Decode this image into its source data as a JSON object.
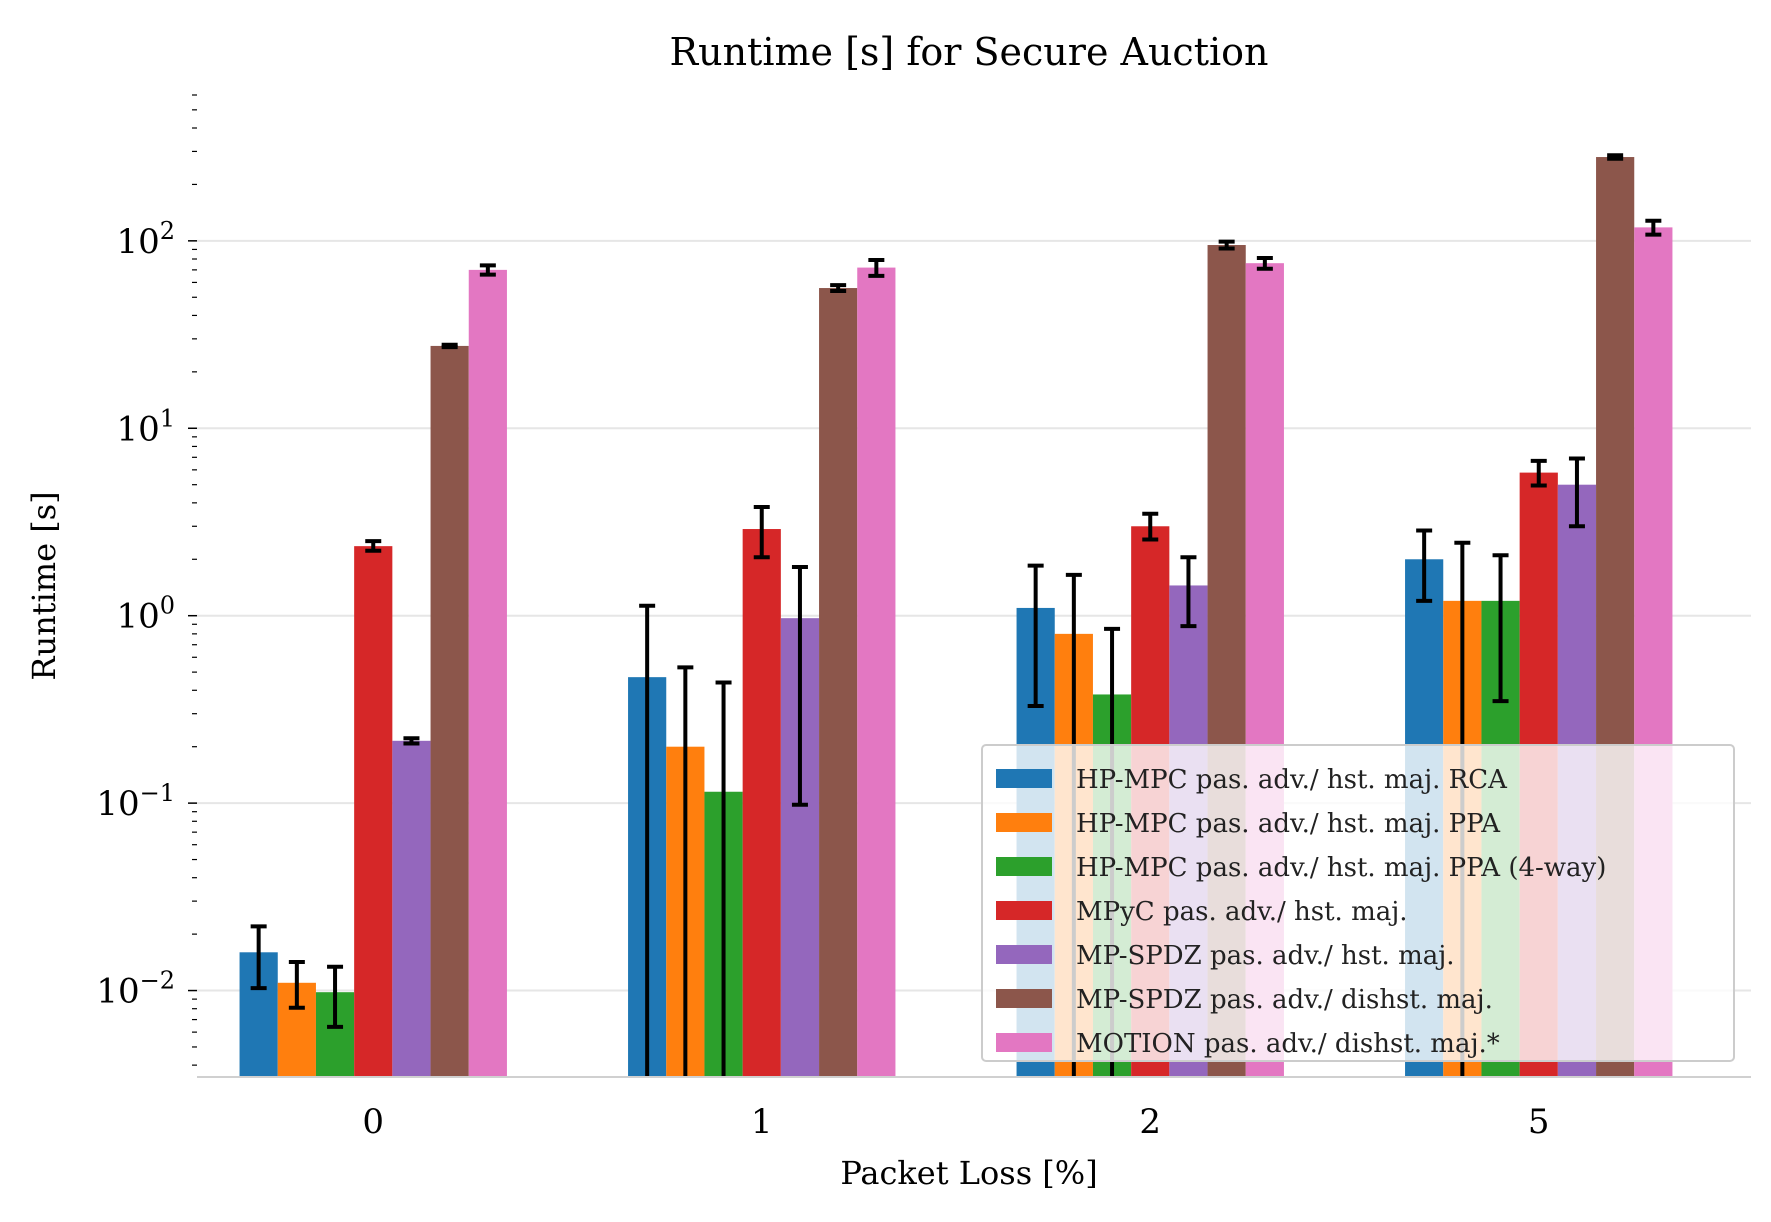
{
  "chart_data": {
    "type": "bar",
    "title": "Runtime [s] for Secure Auction",
    "xlabel": "Packet Loss [%]",
    "ylabel": "Runtime [s]",
    "yscale": "log",
    "ylim": [
      0.0035,
      600
    ],
    "categories": [
      "0",
      "1",
      "2",
      "5"
    ],
    "ytick_labels": [
      {
        "value": 0.01,
        "base": "10",
        "exp": "−2"
      },
      {
        "value": 0.1,
        "base": "10",
        "exp": "−1"
      },
      {
        "value": 1,
        "base": "10",
        "exp": "0"
      },
      {
        "value": 10,
        "base": "10",
        "exp": "1"
      },
      {
        "value": 100,
        "base": "10",
        "exp": "2"
      }
    ],
    "grid": "horizontal",
    "legend_position": "lower-right",
    "series": [
      {
        "name": "HP-MPC pas. adv./ hst. maj. RCA",
        "color": "#1f77b4",
        "values": [
          0.016,
          0.47,
          1.1,
          2.0
        ],
        "err_low": [
          0.0103,
          0.0035,
          0.33,
          1.2
        ],
        "err_high": [
          0.022,
          1.13,
          1.85,
          2.85
        ]
      },
      {
        "name": "HP-MPC pas. adv./ hst. maj. PPA",
        "color": "#ff7f0e",
        "values": [
          0.011,
          0.2,
          0.8,
          1.2
        ],
        "err_low": [
          0.0081,
          0.0035,
          0.0035,
          0.0035
        ],
        "err_high": [
          0.0142,
          0.53,
          1.65,
          2.45
        ]
      },
      {
        "name": "HP-MPC pas. adv./ hst. maj. PPA (4-way)",
        "color": "#2ca02c",
        "values": [
          0.0098,
          0.115,
          0.38,
          1.2
        ],
        "err_low": [
          0.0064,
          0.0035,
          0.0035,
          0.35
        ],
        "err_high": [
          0.0134,
          0.44,
          0.85,
          2.1
        ]
      },
      {
        "name": "MPyC pas. adv./ hst. maj.",
        "color": "#d62728",
        "values": [
          2.35,
          2.9,
          3.0,
          5.8
        ],
        "err_low": [
          2.22,
          2.05,
          2.55,
          4.95
        ],
        "err_high": [
          2.5,
          3.8,
          3.5,
          6.7
        ]
      },
      {
        "name": "MP-SPDZ pas. adv./ hst. maj.",
        "color": "#9467bd",
        "values": [
          0.215,
          0.97,
          1.45,
          5.0
        ],
        "err_low": [
          0.208,
          0.098,
          0.88,
          3.0
        ],
        "err_high": [
          0.222,
          1.82,
          2.05,
          6.9
        ]
      },
      {
        "name": "MP-SPDZ pas. adv./ dishst. maj.",
        "color": "#8c564b",
        "values": [
          27.5,
          56,
          95,
          280
        ],
        "err_low": [
          27.1,
          54,
          91,
          274
        ],
        "err_high": [
          27.9,
          58,
          99,
          286
        ]
      },
      {
        "name": "MOTION pas. adv./ dishst. maj.*",
        "color": "#e377c2",
        "values": [
          70,
          72,
          76,
          118
        ],
        "err_low": [
          66,
          65,
          71,
          108
        ],
        "err_high": [
          74,
          79,
          81,
          128
        ]
      }
    ]
  }
}
